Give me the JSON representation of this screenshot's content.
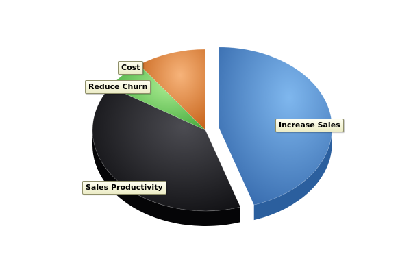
{
  "chart_data": {
    "type": "pie",
    "title": "",
    "categories": [
      "Increase Sales",
      "Sales Productivity",
      "Reduce Churn",
      "Cost"
    ],
    "values": [
      45,
      39,
      6,
      10
    ],
    "exploded": "Increase Sales",
    "colors": [
      "#4f86c6",
      "#26262c",
      "#5cc24e",
      "#e0762a"
    ],
    "legend": "none"
  }
}
